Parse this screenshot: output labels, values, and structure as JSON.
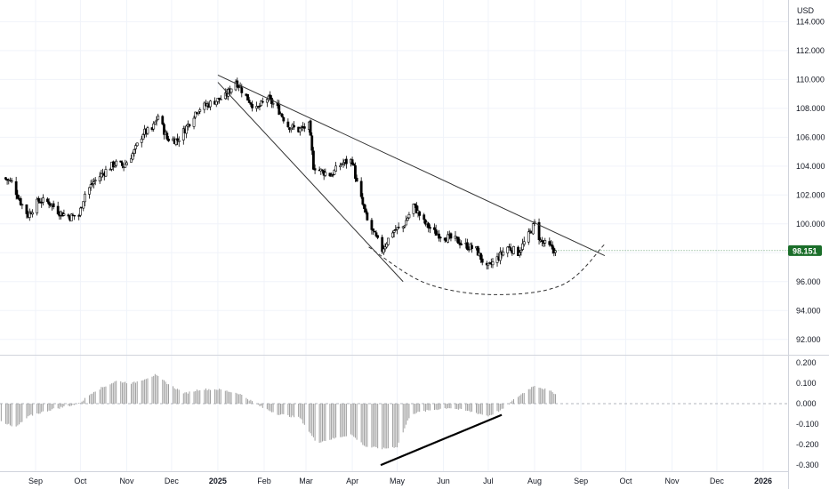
{
  "currency_label": "USD",
  "last_price_label": "98.151",
  "colors": {
    "up": "#000000",
    "down": "#000000",
    "wick": "#000000",
    "grid": "#f0f3fa",
    "price_tag": "#1b6e2a",
    "trendline": "#333333",
    "histogram": "#9e9e9e",
    "divergence_line": "#000000"
  },
  "chart_data": [
    {
      "type": "candlestick",
      "title": "",
      "xlabel": "",
      "ylabel": "",
      "ylim": [
        91.0,
        115.5
      ],
      "grid": true,
      "x_ticks": [
        {
          "label": "Sep",
          "date": "2024-09-01"
        },
        {
          "label": "Oct",
          "date": "2024-10-01"
        },
        {
          "label": "Nov",
          "date": "2024-11-01"
        },
        {
          "label": "Dec",
          "date": "2024-12-01"
        },
        {
          "label": "2025",
          "date": "2025-01-01"
        },
        {
          "label": "Feb",
          "date": "2025-02-01"
        },
        {
          "label": "Mar",
          "date": "2025-03-01"
        },
        {
          "label": "Apr",
          "date": "2025-04-01"
        },
        {
          "label": "May",
          "date": "2025-05-01"
        },
        {
          "label": "Jun",
          "date": "2025-06-01"
        },
        {
          "label": "Jul",
          "date": "2025-07-01"
        },
        {
          "label": "Aug",
          "date": "2025-08-01"
        },
        {
          "label": "Sep",
          "date": "2025-09-01"
        },
        {
          "label": "Oct",
          "date": "2025-10-01"
        },
        {
          "label": "Nov",
          "date": "2025-11-01"
        },
        {
          "label": "Dec",
          "date": "2025-12-01"
        },
        {
          "label": "2026",
          "date": "2026-01-01"
        }
      ],
      "y_ticks": [
        "114.000",
        "112.000",
        "110.000",
        "108.000",
        "106.000",
        "104.000",
        "102.000",
        "100.000",
        "98.000",
        "96.000",
        "94.000",
        "92.000"
      ],
      "y_tick_values": [
        114,
        112,
        110,
        108,
        106,
        104,
        102,
        100,
        98,
        96,
        94,
        92
      ],
      "close_anchors": [
        [
          "2024-08-10",
          103.2
        ],
        [
          "2024-08-16",
          102.9
        ],
        [
          "2024-08-22",
          101.5
        ],
        [
          "2024-08-27",
          100.6
        ],
        [
          "2024-09-03",
          101.6
        ],
        [
          "2024-09-10",
          101.5
        ],
        [
          "2024-09-17",
          100.8
        ],
        [
          "2024-09-24",
          100.5
        ],
        [
          "2024-09-30",
          100.6
        ],
        [
          "2024-10-04",
          102.1
        ],
        [
          "2024-10-10",
          102.9
        ],
        [
          "2024-10-17",
          103.6
        ],
        [
          "2024-10-24",
          104.2
        ],
        [
          "2024-10-30",
          104.0
        ],
        [
          "2024-11-06",
          105.0
        ],
        [
          "2024-11-12",
          106.3
        ],
        [
          "2024-11-18",
          106.5
        ],
        [
          "2024-11-22",
          107.5
        ],
        [
          "2024-11-28",
          105.9
        ],
        [
          "2024-12-05",
          105.8
        ],
        [
          "2024-12-11",
          106.7
        ],
        [
          "2024-12-18",
          107.9
        ],
        [
          "2024-12-24",
          108.2
        ],
        [
          "2024-12-30",
          108.5
        ],
        [
          "2025-01-06",
          108.8
        ],
        [
          "2025-01-13",
          109.9
        ],
        [
          "2025-01-20",
          108.8
        ],
        [
          "2025-01-27",
          107.9
        ],
        [
          "2025-02-03",
          108.7
        ],
        [
          "2025-02-10",
          108.0
        ],
        [
          "2025-02-17",
          106.8
        ],
        [
          "2025-02-24",
          106.5
        ],
        [
          "2025-03-03",
          106.8
        ],
        [
          "2025-03-06",
          104.0
        ],
        [
          "2025-03-12",
          103.6
        ],
        [
          "2025-03-18",
          103.4
        ],
        [
          "2025-03-25",
          104.2
        ],
        [
          "2025-04-01",
          104.4
        ],
        [
          "2025-04-04",
          102.8
        ],
        [
          "2025-04-11",
          100.2
        ],
        [
          "2025-04-21",
          98.2
        ],
        [
          "2025-04-28",
          99.5
        ],
        [
          "2025-05-05",
          99.8
        ],
        [
          "2025-05-12",
          101.3
        ],
        [
          "2025-05-19",
          100.1
        ],
        [
          "2025-05-26",
          99.4
        ],
        [
          "2025-06-02",
          99.1
        ],
        [
          "2025-06-09",
          98.9
        ],
        [
          "2025-06-16",
          98.5
        ],
        [
          "2025-06-23",
          98.2
        ],
        [
          "2025-06-30",
          96.9
        ],
        [
          "2025-07-07",
          97.6
        ],
        [
          "2025-07-14",
          98.4
        ],
        [
          "2025-07-21",
          98.0
        ],
        [
          "2025-07-28",
          99.2
        ],
        [
          "2025-08-01",
          100.0
        ],
        [
          "2025-08-05",
          98.8
        ],
        [
          "2025-08-11",
          98.4
        ],
        [
          "2025-08-15",
          98.151
        ]
      ],
      "last_price": 98.151,
      "annotations": {
        "upper_trendline": [
          [
            "2025-01-01",
            110.3
          ],
          [
            "2025-09-17",
            97.8
          ]
        ],
        "wedge_lower_line": [
          [
            "2025-01-01",
            109.8
          ],
          [
            "2025-05-05",
            96.0
          ]
        ],
        "arc_curve": [
          [
            "2025-04-12",
            98.4
          ],
          [
            "2025-05-20",
            95.9
          ],
          [
            "2025-07-05",
            95.1
          ],
          [
            "2025-08-20",
            95.8
          ],
          [
            "2025-09-17",
            98.6
          ]
        ]
      }
    },
    {
      "type": "bar",
      "title": "",
      "xlabel": "",
      "ylabel": "",
      "ylim": [
        -0.33,
        0.23
      ],
      "y_ticks": [
        "0.200",
        "0.100",
        "0.000",
        "-0.100",
        "-0.200",
        "-0.300"
      ],
      "y_tick_values": [
        0.2,
        0.1,
        0.0,
        -0.1,
        -0.2,
        -0.3
      ],
      "value_anchors": [
        [
          "2024-08-01",
          -0.05
        ],
        [
          "2024-08-18",
          -0.12
        ],
        [
          "2024-08-28",
          -0.06
        ],
        [
          "2024-09-11",
          -0.03
        ],
        [
          "2024-09-30",
          0.0
        ],
        [
          "2024-10-10",
          0.06
        ],
        [
          "2024-10-25",
          0.11
        ],
        [
          "2024-11-05",
          0.1
        ],
        [
          "2024-11-20",
          0.14
        ],
        [
          "2024-11-30",
          0.09
        ],
        [
          "2024-12-10",
          0.05
        ],
        [
          "2024-12-20",
          0.07
        ],
        [
          "2025-01-01",
          0.07
        ],
        [
          "2025-01-15",
          0.05
        ],
        [
          "2025-01-31",
          -0.02
        ],
        [
          "2025-02-10",
          -0.05
        ],
        [
          "2025-02-25",
          -0.07
        ],
        [
          "2025-03-08",
          -0.19
        ],
        [
          "2025-03-20",
          -0.17
        ],
        [
          "2025-03-31",
          -0.15
        ],
        [
          "2025-04-10",
          -0.21
        ],
        [
          "2025-04-22",
          -0.22
        ],
        [
          "2025-05-01",
          -0.21
        ],
        [
          "2025-05-10",
          -0.05
        ],
        [
          "2025-05-25",
          -0.03
        ],
        [
          "2025-06-05",
          -0.02
        ],
        [
          "2025-06-20",
          -0.04
        ],
        [
          "2025-07-01",
          -0.06
        ],
        [
          "2025-07-10",
          -0.03
        ],
        [
          "2025-07-20",
          0.03
        ],
        [
          "2025-07-28",
          0.07
        ],
        [
          "2025-08-01",
          0.09
        ],
        [
          "2025-08-08",
          0.07
        ],
        [
          "2025-08-15",
          0.05
        ]
      ],
      "annotations": {
        "divergence_line": [
          [
            "2025-04-20",
            -0.3
          ],
          [
            "2025-07-10",
            -0.055
          ]
        ]
      }
    }
  ]
}
